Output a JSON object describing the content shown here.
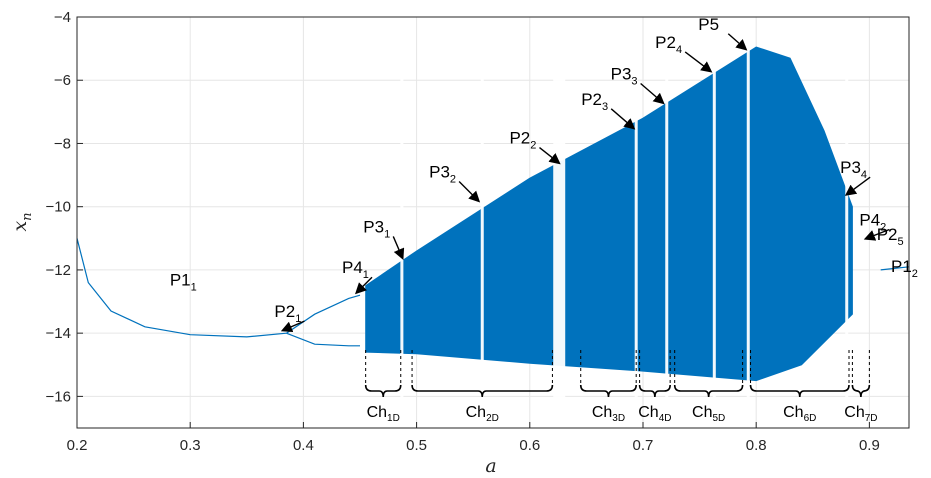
{
  "chart_data": {
    "type": "scatter",
    "title": "",
    "xlabel": "a",
    "ylabel": "x_n",
    "xlim": [
      0.2,
      0.935
    ],
    "ylim": [
      -17,
      -4
    ],
    "xticks": [
      0.2,
      0.3,
      0.4,
      0.5,
      0.6,
      0.7,
      0.8,
      0.9
    ],
    "yticks": [
      -16,
      -14,
      -12,
      -10,
      -8,
      -6,
      -4
    ],
    "xtick_labels": [
      "0.2",
      "0.3",
      "0.4",
      "0.5",
      "0.6",
      "0.7",
      "0.8",
      "0.9"
    ],
    "ytick_labels": [
      "−16",
      "−14",
      "−12",
      "−10",
      "−8",
      "−6",
      "−4"
    ],
    "grid": true,
    "color": "#0072BD",
    "series": [
      {
        "name": "",
        "kind": "bifurcation-diagram",
        "period1_branch": [
          [
            0.2,
            -11
          ],
          [
            0.21,
            -12.4
          ],
          [
            0.23,
            -13.3
          ],
          [
            0.26,
            -13.8
          ],
          [
            0.3,
            -14.05
          ],
          [
            0.35,
            -14.12
          ],
          [
            0.385,
            -14.0
          ]
        ],
        "period2_upper": [
          [
            0.385,
            -14.0
          ],
          [
            0.41,
            -13.4
          ],
          [
            0.44,
            -12.9
          ],
          [
            0.45,
            -12.8
          ]
        ],
        "period2_lower": [
          [
            0.385,
            -14.0
          ],
          [
            0.41,
            -14.35
          ],
          [
            0.44,
            -14.4
          ],
          [
            0.45,
            -14.4
          ]
        ],
        "chaotic_region": {
          "a_range": [
            0.455,
            0.885
          ],
          "upper_envelope": [
            [
              0.455,
              -12.5
            ],
            [
              0.5,
              -11.4
            ],
            [
              0.6,
              -9.1
            ],
            [
              0.7,
              -7.2
            ],
            [
              0.8,
              -4.95
            ],
            [
              0.83,
              -5.3
            ],
            [
              0.86,
              -7.6
            ],
            [
              0.885,
              -10.0
            ]
          ],
          "lower_envelope": [
            [
              0.455,
              -14.6
            ],
            [
              0.5,
              -14.65
            ],
            [
              0.6,
              -14.95
            ],
            [
              0.7,
              -15.2
            ],
            [
              0.8,
              -15.5
            ],
            [
              0.84,
              -15.0
            ],
            [
              0.885,
              -13.4
            ]
          ]
        },
        "period1_right_branch": [
          [
            0.91,
            -12.0
          ],
          [
            0.935,
            -11.9
          ]
        ]
      }
    ],
    "annotations": [
      {
        "label": "P1",
        "sub": "1",
        "a": 0.335,
        "x": -13.6
      },
      {
        "label": "P2",
        "sub": "1",
        "a": 0.385,
        "x": -14.0
      },
      {
        "label": "P4",
        "sub": "1",
        "a": 0.45,
        "x": -12.8
      },
      {
        "label": "P3",
        "sub": "1",
        "a": 0.49,
        "x": -11.7
      },
      {
        "label": "P3",
        "sub": "2",
        "a": 0.557,
        "x": -9.9
      },
      {
        "label": "P2",
        "sub": "2",
        "a": 0.628,
        "x": -8.7
      },
      {
        "label": "P2",
        "sub": "3",
        "a": 0.694,
        "x": -7.6
      },
      {
        "label": "P3",
        "sub": "3",
        "a": 0.72,
        "x": -6.8
      },
      {
        "label": "P2",
        "sub": "4",
        "a": 0.762,
        "x": -5.8
      },
      {
        "label": "P5",
        "sub": "",
        "a": 0.793,
        "x": -5.1
      },
      {
        "label": "P3",
        "sub": "4",
        "a": 0.883,
        "x": -9.7
      },
      {
        "label": "P4",
        "sub": "2",
        "a": 0.9,
        "x": -11.1
      },
      {
        "label": "P2",
        "sub": "5",
        "a": 0.91,
        "x": -11.5
      },
      {
        "label": "P1",
        "sub": "2",
        "a": 0.935,
        "x": -12.0
      }
    ],
    "chaotic_intervals": [
      {
        "label": "Ch",
        "sub": "1D",
        "a_range": [
          0.455,
          0.486
        ]
      },
      {
        "label": "Ch",
        "sub": "2D",
        "a_range": [
          0.496,
          0.62
        ]
      },
      {
        "label": "Ch",
        "sub": "3D",
        "a_range": [
          0.645,
          0.694
        ]
      },
      {
        "label": "Ch",
        "sub": "4D",
        "a_range": [
          0.697,
          0.724
        ]
      },
      {
        "label": "Ch",
        "sub": "5D",
        "a_range": [
          0.728,
          0.788
        ]
      },
      {
        "label": "Ch",
        "sub": "6D",
        "a_range": [
          0.795,
          0.882
        ]
      },
      {
        "label": "Ch",
        "sub": "7D",
        "a_range": [
          0.885,
          0.9
        ]
      }
    ]
  }
}
